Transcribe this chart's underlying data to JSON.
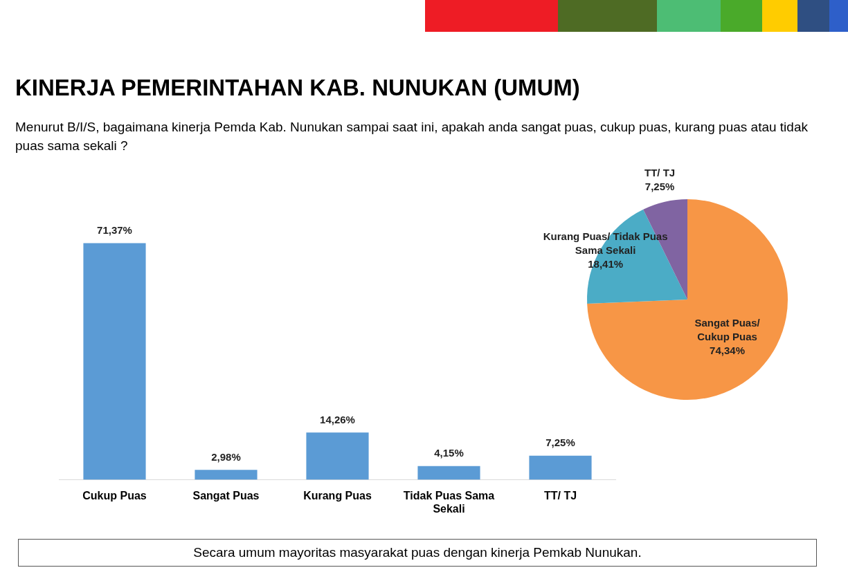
{
  "chart_data": [
    {
      "type": "bar",
      "title": "KINERJA PEMERINTAHAN KAB. NUNUKAN (UMUM)",
      "subtitle": "Menurut B/I/S, bagaimana kinerja Pemda Kab. Nunukan sampai saat ini, apakah anda sangat puas, cukup puas, kurang puas atau tidak puas sama sekali ?",
      "categories": [
        "Cukup Puas",
        "Sangat Puas",
        "Kurang Puas",
        "Tidak Puas Sama Sekali",
        "TT/ TJ"
      ],
      "values": [
        71.37,
        2.98,
        14.26,
        4.15,
        7.25
      ],
      "value_labels": [
        "71,37%",
        "2,98%",
        "14,26%",
        "4,15%",
        "7,25%"
      ],
      "color": "#5b9bd5",
      "grid": false,
      "legend": false,
      "tick_labels": "x",
      "annotations": [
        "Secara umum mayoritas masyarakat puas dengan kinerja Pemkab Nunukan."
      ]
    },
    {
      "type": "pie",
      "categories": [
        "Sangat Puas/ Cukup Puas",
        "Kurang Puas/ Tidak Puas Sama Sekali",
        "TT/ TJ"
      ],
      "values": [
        74.34,
        18.41,
        7.25
      ],
      "value_labels": [
        "74,34%",
        "18,41%",
        "7,25%"
      ],
      "colors": [
        "#f79646",
        "#4bacc6",
        "#8064a2"
      ],
      "legend": false
    }
  ]
}
